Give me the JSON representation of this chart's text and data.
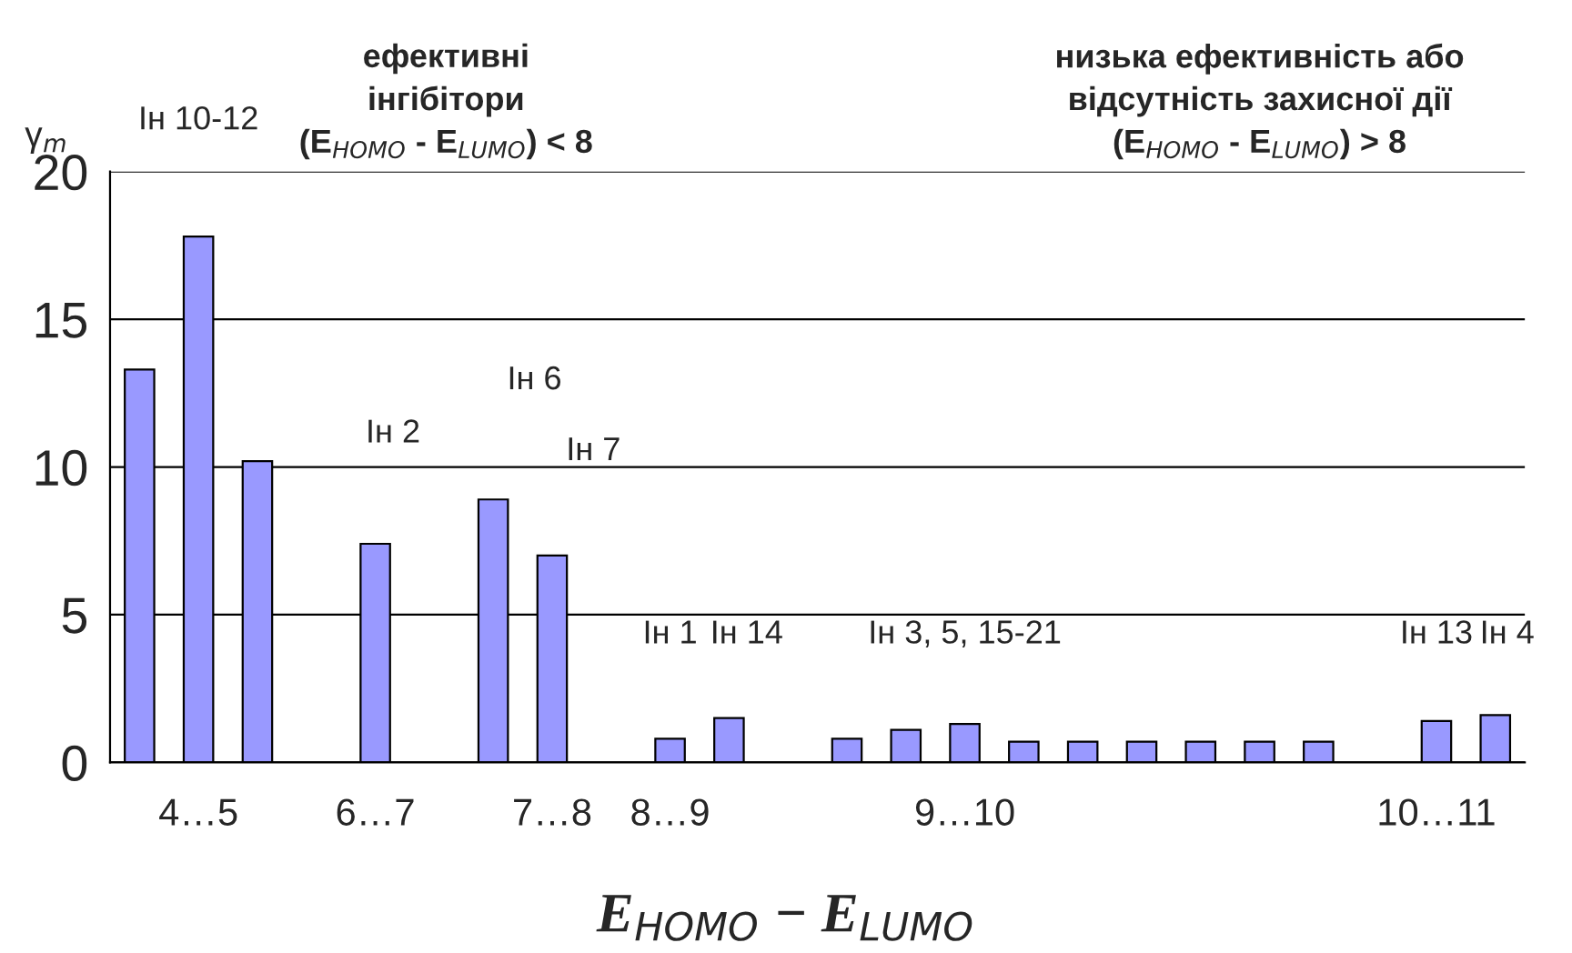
{
  "chart_data": {
    "type": "bar",
    "xlabel": "E$_{HOMO}$ − E$_{LUMO}$",
    "ylabel": "γ$_{m}$",
    "categories": [
      null,
      "4…5",
      null,
      null,
      "6…7",
      null,
      null,
      "7…8",
      null,
      "8…9",
      null,
      null,
      null,
      null,
      "9…10",
      null,
      null,
      null,
      null,
      null,
      null,
      null,
      "10…11",
      null
    ],
    "values": [
      13.3,
      17.8,
      10.2,
      null,
      7.4,
      null,
      8.9,
      7.0,
      null,
      0.8,
      1.5,
      null,
      0.8,
      1.1,
      1.3,
      0.7,
      0.7,
      0.7,
      0.7,
      0.7,
      0.7,
      null,
      1.4,
      1.6
    ],
    "color": "#9999ff",
    "ylim": [
      0,
      20
    ],
    "yticks": [
      0,
      5,
      10,
      15,
      20
    ],
    "grid": "y",
    "annotations": [
      "Ін 10-12",
      "ефективні\nінгібітори\n(E$_{HOMO}$ - E$_{LUMO}$) < 8",
      "низька ефективність або\nвідсутність захисної дії\n(E$_{HOMO}$ - E$_{LUMO}$) > 8",
      "Ін 6",
      "Ін 2",
      "Ін 7",
      "Ін 1",
      "Ін 14",
      "Ін 3, 5, 15-21",
      "Ін 13",
      "Ін 4"
    ]
  }
}
